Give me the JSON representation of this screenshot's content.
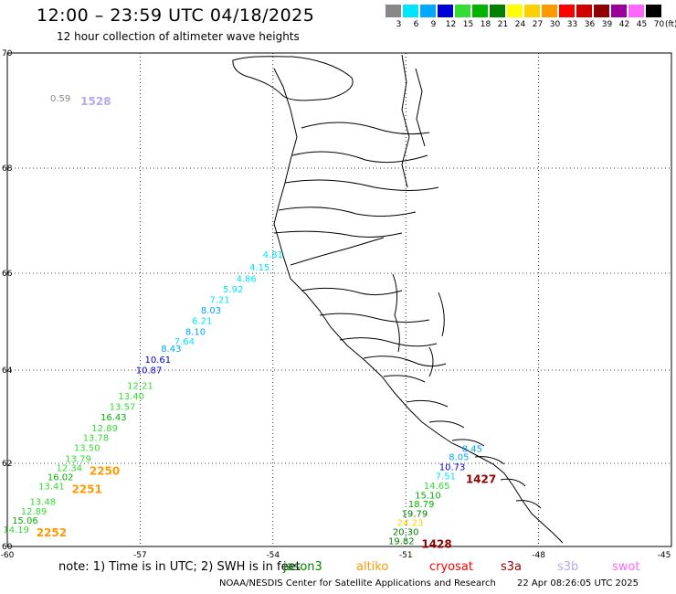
{
  "header": {
    "title": "12:00 – 23:59 UTC 04/18/2025",
    "subtitle": "12 hour collection of altimeter wave heights"
  },
  "colorbar": {
    "unit": "(ft)",
    "bins": [
      {
        "label": "3",
        "color": "#888888"
      },
      {
        "label": "6",
        "color": "#00e5ff"
      },
      {
        "label": "9",
        "color": "#00a8ff"
      },
      {
        "label": "12",
        "color": "#0000d8"
      },
      {
        "label": "15",
        "color": "#33dd33"
      },
      {
        "label": "18",
        "color": "#00b400"
      },
      {
        "label": "21",
        "color": "#008000"
      },
      {
        "label": "24",
        "color": "#ffff00"
      },
      {
        "label": "27",
        "color": "#ffd000"
      },
      {
        "label": "30",
        "color": "#ff9900"
      },
      {
        "label": "33",
        "color": "#ff0000"
      },
      {
        "label": "36",
        "color": "#d00000"
      },
      {
        "label": "39",
        "color": "#900000"
      },
      {
        "label": "42",
        "color": "#990099"
      },
      {
        "label": "45",
        "color": "#ff66ff"
      },
      {
        "label": "70",
        "color": "#000000"
      }
    ]
  },
  "map": {
    "lon_ticks": [
      "-60",
      "-57",
      "-54",
      "-51",
      "-48",
      "-45"
    ],
    "lat_ticks": [
      "60",
      "62",
      "64",
      "66",
      "68",
      "70"
    ],
    "lon_range": [
      -60,
      -45
    ],
    "lat_range": [
      60,
      70
    ]
  },
  "chart_data": {
    "type": "scatter",
    "series": [
      {
        "pass_label": "1528",
        "pass_color": "#b8a8f0",
        "points": [
          {
            "lon": -58.8,
            "lat": 69.16,
            "value": "0.59",
            "color": "#888888"
          }
        ]
      },
      {
        "pass_label": "2250",
        "pass_color": "#ff9900",
        "points": [
          {
            "lon": -54.0,
            "lat": 66.3,
            "value": "4.81",
            "color": "#00e5ff"
          },
          {
            "lon": -54.3,
            "lat": 66.05,
            "value": "4.15",
            "color": "#00e5ff"
          },
          {
            "lon": -54.6,
            "lat": 65.82,
            "value": "4.86",
            "color": "#00e5ff"
          },
          {
            "lon": -54.9,
            "lat": 65.6,
            "value": "5.92",
            "color": "#00e5ff"
          },
          {
            "lon": -55.2,
            "lat": 65.39,
            "value": "7.21",
            "color": "#00e5ff"
          },
          {
            "lon": -55.4,
            "lat": 65.17,
            "value": "8.03",
            "color": "#00a8ff"
          },
          {
            "lon": -55.6,
            "lat": 64.95,
            "value": "6.21",
            "color": "#00e5ff"
          },
          {
            "lon": -55.75,
            "lat": 64.73,
            "value": "8.10",
            "color": "#00a8ff"
          },
          {
            "lon": -56.0,
            "lat": 64.53,
            "value": "7.64",
            "color": "#00e5ff"
          },
          {
            "lon": -56.3,
            "lat": 64.38,
            "value": "8.43",
            "color": "#00a8ff"
          },
          {
            "lon": -56.6,
            "lat": 64.15,
            "value": "10.61",
            "color": "#0000d8"
          },
          {
            "lon": -56.8,
            "lat": 63.93,
            "value": "10.87",
            "color": "#0000d8"
          },
          {
            "lon": -57.0,
            "lat": 63.6,
            "value": "12.21",
            "color": "#33dd33"
          },
          {
            "lon": -57.2,
            "lat": 63.37,
            "value": "13.40",
            "color": "#33dd33"
          },
          {
            "lon": -57.4,
            "lat": 63.15,
            "value": "13.57",
            "color": "#33dd33"
          },
          {
            "lon": -57.6,
            "lat": 62.92,
            "value": "16.43",
            "color": "#00b400"
          },
          {
            "lon": -57.8,
            "lat": 62.69,
            "value": "12.89",
            "color": "#33dd33"
          },
          {
            "lon": -58.0,
            "lat": 62.48,
            "value": "13.78",
            "color": "#33dd33"
          },
          {
            "lon": -58.2,
            "lat": 62.26,
            "value": "13.50",
            "color": "#33dd33"
          },
          {
            "lon": -58.4,
            "lat": 62.03,
            "value": "13.79",
            "color": "#33dd33"
          },
          {
            "lon": -58.6,
            "lat": 61.81,
            "value": "12.34",
            "color": "#33dd33"
          }
        ]
      },
      {
        "pass_label": "2251",
        "pass_color": "#ff9900",
        "points": [
          {
            "lon": -58.8,
            "lat": 61.59,
            "value": "16.02",
            "color": "#00b400"
          },
          {
            "lon": -59.0,
            "lat": 61.37,
            "value": "13.41",
            "color": "#33dd33"
          }
        ]
      },
      {
        "pass_label": "2252",
        "pass_color": "#ff9900",
        "points": [
          {
            "lon": -59.2,
            "lat": 61.0,
            "value": "13.48",
            "color": "#33dd33"
          },
          {
            "lon": -59.4,
            "lat": 60.77,
            "value": "12.89",
            "color": "#33dd33"
          },
          {
            "lon": -59.6,
            "lat": 60.55,
            "value": "15.06",
            "color": "#00b400"
          },
          {
            "lon": -59.8,
            "lat": 60.33,
            "value": "14.19",
            "color": "#33dd33"
          }
        ]
      },
      {
        "pass_label": "1427",
        "pass_color": "#900000",
        "points": [
          {
            "lon": -49.5,
            "lat": 62.25,
            "value": "8.45",
            "color": "#00a8ff"
          },
          {
            "lon": -49.8,
            "lat": 62.07,
            "value": "8.05",
            "color": "#00a8ff"
          },
          {
            "lon": -49.95,
            "lat": 61.84,
            "value": "10.73",
            "color": "#0000d8"
          },
          {
            "lon": -50.1,
            "lat": 61.61,
            "value": "7.51",
            "color": "#00e5ff"
          }
        ]
      },
      {
        "pass_label": "1428",
        "pass_color": "#900000",
        "points": [
          {
            "lon": -50.3,
            "lat": 61.38,
            "value": "14.65",
            "color": "#33dd33"
          },
          {
            "lon": -50.5,
            "lat": 61.15,
            "value": "15.10",
            "color": "#00b400"
          },
          {
            "lon": -50.65,
            "lat": 60.94,
            "value": "18.79",
            "color": "#00b400"
          },
          {
            "lon": -50.8,
            "lat": 60.71,
            "value": "19.79",
            "color": "#008000"
          },
          {
            "lon": -50.9,
            "lat": 60.49,
            "value": "24.23",
            "color": "#ffd000"
          },
          {
            "lon": -51.0,
            "lat": 60.27,
            "value": "20.30",
            "color": "#008000"
          },
          {
            "lon": -51.1,
            "lat": 60.05,
            "value": "19.82",
            "color": "#008000"
          }
        ]
      }
    ]
  },
  "footer": {
    "note": "note: 1) Time is in UTC; 2) SWH is in feet",
    "legend": [
      {
        "label": "jason3",
        "color": "#008000"
      },
      {
        "label": "altiko",
        "color": "#ff9900"
      },
      {
        "label": "cryosat",
        "color": "#ff0000"
      },
      {
        "label": "s3a",
        "color": "#900000"
      },
      {
        "label": "s3b",
        "color": "#b8a8f0"
      },
      {
        "label": "swot",
        "color": "#ff66ff"
      }
    ],
    "credit": "NOAA/NESDIS Center for Satellite Applications and Research",
    "timestamp": "22 Apr 08:26:05 UTC 2025"
  }
}
